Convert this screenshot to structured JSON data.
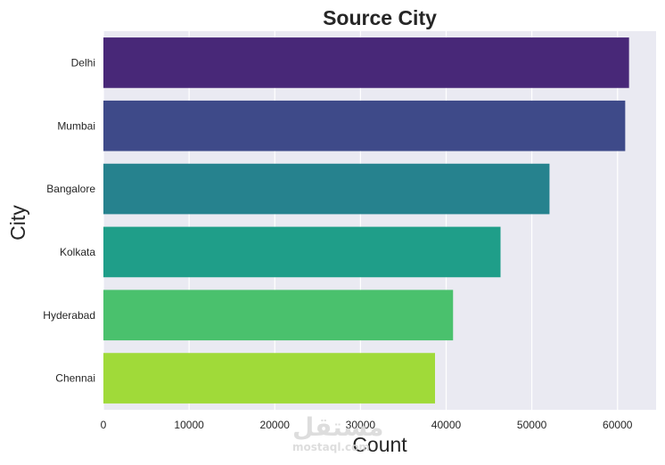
{
  "chart_data": {
    "type": "bar",
    "orientation": "horizontal",
    "title": "Source City",
    "xlabel": "Count",
    "ylabel": "City",
    "categories": [
      "Delhi",
      "Mumbai",
      "Bangalore",
      "Kolkata",
      "Hyderabad",
      "Chennai"
    ],
    "values": [
      61343,
      60896,
      52061,
      46347,
      40806,
      38700
    ],
    "xlim": [
      0,
      64500
    ],
    "xticks": [
      0,
      10000,
      20000,
      30000,
      40000,
      50000,
      60000
    ],
    "grid": true,
    "colors": [
      "#482878",
      "#3e4a89",
      "#26828e",
      "#1f9e89",
      "#4ac16d",
      "#a0da39"
    ],
    "background": "#eaeaf2"
  },
  "watermark": {
    "logo_text": "مستقل",
    "site": "mostaql.com"
  }
}
